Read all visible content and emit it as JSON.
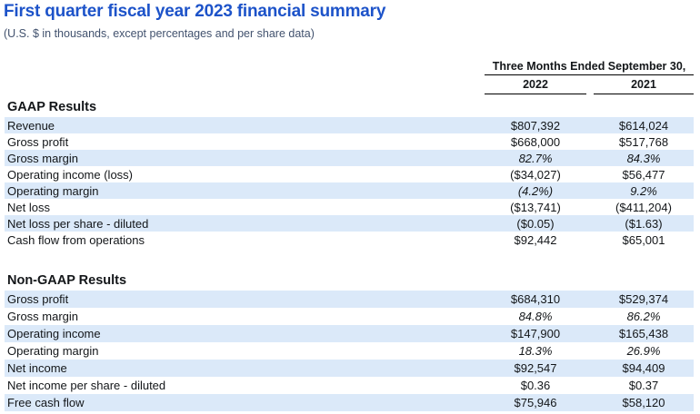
{
  "title": "First quarter fiscal year 2023 financial summary",
  "subtitle": "(U.S. $ in thousands, except percentages and per share data)",
  "colors": {
    "title_blue": "#1d53c9",
    "subtitle_gray": "#42526e",
    "row_highlight_blue": "#dbe9f9",
    "rule_black": "#000000"
  },
  "table": {
    "period_header": "Three Months Ended September 30,",
    "columns": [
      "2022",
      "2021"
    ],
    "sections": [
      {
        "heading": "GAAP Results",
        "rows": [
          {
            "label": "Revenue",
            "v2022": "$807,392",
            "v2021": "$614,024",
            "italic": false
          },
          {
            "label": "Gross profit",
            "v2022": "$668,000",
            "v2021": "$517,768",
            "italic": false
          },
          {
            "label": "Gross margin",
            "v2022": "82.7%",
            "v2021": "84.3%",
            "italic": true
          },
          {
            "label": "Operating income (loss)",
            "v2022": "($34,027)",
            "v2021": "$56,477",
            "italic": false
          },
          {
            "label": "Operating margin",
            "v2022": "(4.2%)",
            "v2021": "9.2%",
            "italic": true
          },
          {
            "label": "Net loss",
            "v2022": "($13,741)",
            "v2021": "($411,204)",
            "italic": false
          },
          {
            "label": "Net loss per share - diluted",
            "v2022": "($0.05)",
            "v2021": "($1.63)",
            "italic": false
          },
          {
            "label": "Cash flow from operations",
            "v2022": "$92,442",
            "v2021": "$65,001",
            "italic": false
          }
        ]
      },
      {
        "heading": "Non-GAAP Results",
        "rows": [
          {
            "label": "Gross profit",
            "v2022": "$684,310",
            "v2021": "$529,374",
            "italic": false
          },
          {
            "label": "Gross margin",
            "v2022": "84.8%",
            "v2021": "86.2%",
            "italic": true
          },
          {
            "label": "Operating income",
            "v2022": "$147,900",
            "v2021": "$165,438",
            "italic": false
          },
          {
            "label": "Operating margin",
            "v2022": "18.3%",
            "v2021": "26.9%",
            "italic": true
          },
          {
            "label": "Net income",
            "v2022": "$92,547",
            "v2021": "$94,409",
            "italic": false
          },
          {
            "label": "Net income per share - diluted",
            "v2022": "$0.36",
            "v2021": "$0.37",
            "italic": false
          },
          {
            "label": "Free cash flow",
            "v2022": "$75,946",
            "v2021": "$58,120",
            "italic": false
          }
        ]
      }
    ]
  }
}
